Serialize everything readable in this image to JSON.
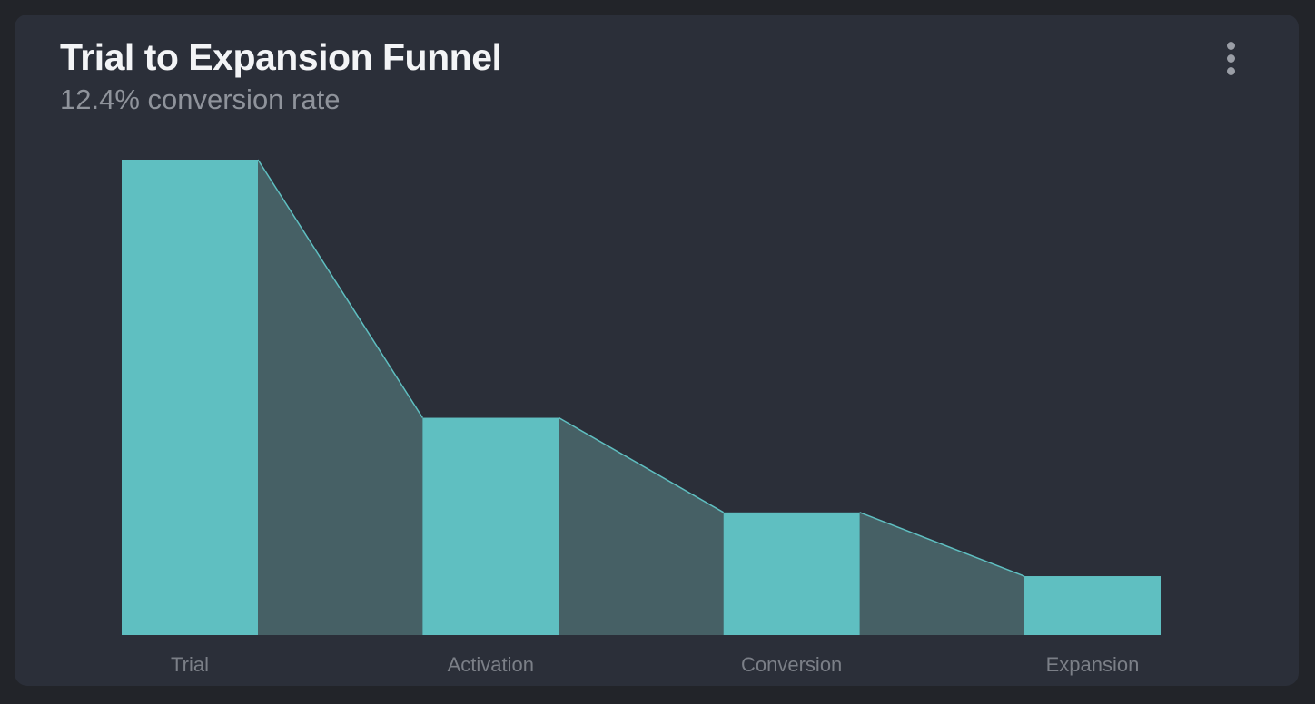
{
  "header": {
    "title": "Trial to Expansion Funnel",
    "subtitle": "12.4% conversion rate"
  },
  "menu": {
    "icon": "more-vertical-icon"
  },
  "colors": {
    "background": "#222429",
    "card": "#2b2f39",
    "bar": "#5fbfc1",
    "connector": "#466065",
    "connector_edge": "#5fbfc1",
    "label": "#7b7f87"
  },
  "chart_data": {
    "type": "bar",
    "subtype": "funnel",
    "title": "Trial to Expansion Funnel",
    "subtitle": "12.4% conversion rate",
    "categories": [
      "Trial",
      "Activation",
      "Conversion",
      "Expansion"
    ],
    "values": [
      100,
      45.7,
      25.8,
      12.4
    ],
    "ylim": [
      0,
      100
    ],
    "grid": false,
    "legend": "none"
  }
}
